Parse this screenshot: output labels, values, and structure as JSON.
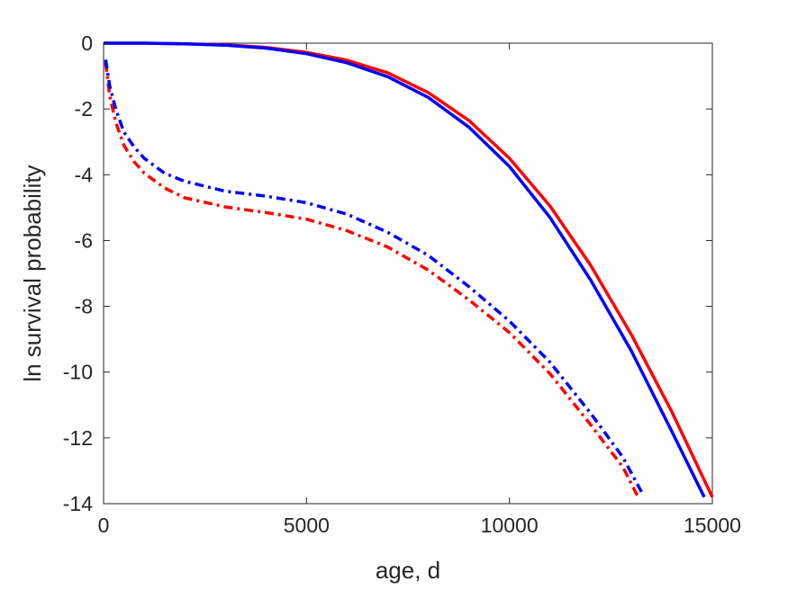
{
  "chart_data": {
    "type": "line",
    "xlabel": "age, d",
    "ylabel": "ln survival probability",
    "xlim": [
      0,
      15000
    ],
    "ylim": [
      -14,
      0
    ],
    "xticks": [
      "0",
      "5000",
      "10000",
      "15000"
    ],
    "yticks": [
      "0",
      "-2",
      "-4",
      "-6",
      "-8",
      "-10",
      "-12",
      "-14"
    ],
    "grid": false,
    "legend": "none",
    "series": [
      {
        "style": "solid",
        "color": "#ff0000",
        "x": [
          0,
          1000,
          2000,
          3000,
          4000,
          5000,
          6000,
          7000,
          8000,
          9000,
          10000,
          11000,
          12000,
          13000,
          14000,
          15000
        ],
        "y": [
          0,
          0,
          -0.02,
          -0.05,
          -0.13,
          -0.28,
          -0.52,
          -0.9,
          -1.5,
          -2.35,
          -3.5,
          -4.95,
          -6.75,
          -8.85,
          -11.2,
          -13.8
        ]
      },
      {
        "style": "solid",
        "color": "#0000ff",
        "x": [
          0,
          1000,
          2000,
          3000,
          4000,
          5000,
          6000,
          7000,
          8000,
          9000,
          10000,
          11000,
          12000,
          13000,
          14000,
          14800
        ],
        "y": [
          0,
          0,
          -0.02,
          -0.06,
          -0.15,
          -0.32,
          -0.6,
          -1.02,
          -1.65,
          -2.55,
          -3.75,
          -5.3,
          -7.2,
          -9.35,
          -11.8,
          -13.8
        ]
      },
      {
        "style": "dashdot",
        "color": "#ff0000",
        "x": [
          50,
          150,
          300,
          500,
          750,
          1000,
          1500,
          2000,
          3000,
          4000,
          5000,
          6000,
          7000,
          8000,
          9000,
          10000,
          11000,
          12000,
          12800,
          13150
        ],
        "y": [
          -0.6,
          -1.6,
          -2.4,
          -3.1,
          -3.6,
          -3.95,
          -4.4,
          -4.7,
          -4.98,
          -5.15,
          -5.35,
          -5.7,
          -6.2,
          -6.9,
          -7.8,
          -8.8,
          -10.05,
          -11.6,
          -12.9,
          -13.75
        ]
      },
      {
        "style": "dashdot",
        "color": "#0000ff",
        "x": [
          50,
          150,
          300,
          500,
          750,
          1000,
          1500,
          2000,
          3000,
          4000,
          5000,
          6000,
          7000,
          8000,
          9000,
          10000,
          11000,
          12000,
          12800,
          13300
        ],
        "y": [
          -0.5,
          -1.3,
          -2.0,
          -2.7,
          -3.15,
          -3.5,
          -3.95,
          -4.2,
          -4.5,
          -4.65,
          -4.85,
          -5.2,
          -5.75,
          -6.45,
          -7.4,
          -8.45,
          -9.7,
          -11.25,
          -12.6,
          -13.75
        ]
      }
    ]
  }
}
